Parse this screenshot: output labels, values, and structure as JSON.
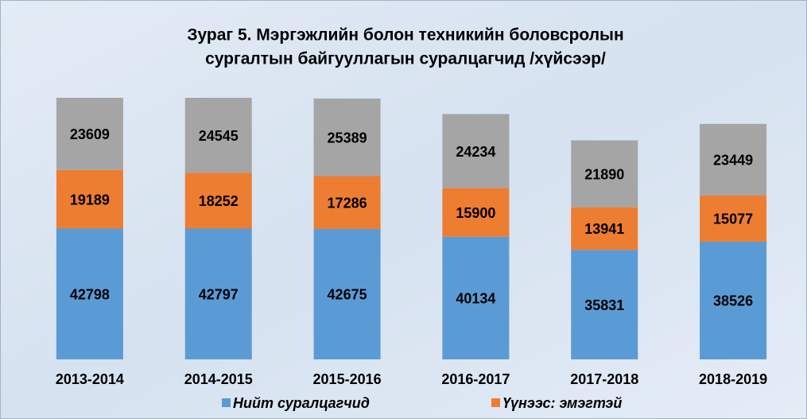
{
  "chart_data": {
    "type": "stacked_bar",
    "title": [
      "Зураг 5. Мэргэжлийн болон техникийн боловсролын",
      "сургалтын байгууллагын суралцагчид /хүйсээр/"
    ],
    "categories": [
      "2013-2014",
      "2014-2015",
      "2015-2016",
      "2016-2017",
      "2017-2018",
      "2018-2019"
    ],
    "series": [
      {
        "name": "Нийт суралцагчид",
        "color": "#5b9bd5",
        "values": [
          42798,
          42797,
          42675,
          40134,
          35831,
          38526
        ]
      },
      {
        "name": "Үүнээс: эмэгтэй",
        "color": "#ed7d31",
        "values": [
          19189,
          18252,
          17286,
          15900,
          13941,
          15077
        ]
      },
      {
        "color": "#a5a5a5",
        "values": [
          23609,
          24545,
          25389,
          24234,
          21890,
          23449
        ]
      }
    ],
    "legend": "bottom"
  }
}
